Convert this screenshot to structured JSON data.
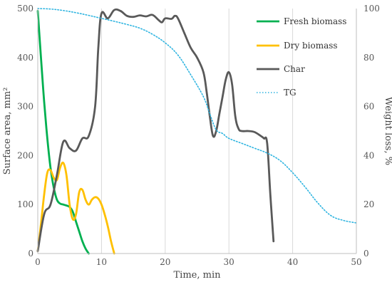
{
  "chart_data": {
    "type": "line",
    "xlabel": "Time, min",
    "ylabel_left": "Surface area, mm²",
    "ylabel_right": "Weight loss, %",
    "xlim": [
      0,
      50
    ],
    "ylim_left": [
      0,
      500
    ],
    "ylim_right": [
      0,
      100
    ],
    "x_ticks": [
      "0",
      "10",
      "20",
      "30",
      "40",
      "50"
    ],
    "y_left_ticks": [
      "0",
      "100",
      "200",
      "300",
      "400",
      "500"
    ],
    "y_right_ticks": [
      "0",
      "20",
      "40",
      "60",
      "80",
      "100"
    ],
    "grid": "vertical",
    "legend_position": "top-right",
    "series": [
      {
        "name": "Fresh biomass",
        "axis": "left",
        "color": "#00b050",
        "style": "solid",
        "x": [
          0,
          0.5,
          1,
          1.5,
          2,
          2.5,
          3,
          3.5,
          4,
          4.5,
          5,
          5.5,
          6,
          6.5,
          7,
          7.5,
          8
        ],
        "y": [
          495,
          400,
          310,
          235,
          175,
          135,
          110,
          102,
          100,
          98,
          95,
          85,
          65,
          45,
          25,
          10,
          0
        ]
      },
      {
        "name": "Dry biomass",
        "axis": "left",
        "color": "#ffc000",
        "style": "solid",
        "x": [
          0,
          0.5,
          1,
          1.5,
          2,
          2.5,
          3,
          3.5,
          4,
          4.5,
          5,
          5.5,
          6,
          6.5,
          7,
          7.5,
          8,
          8.5,
          9,
          9.5,
          10,
          10.5,
          11,
          11.5,
          12
        ],
        "y": [
          5,
          60,
          120,
          165,
          170,
          155,
          150,
          175,
          185,
          160,
          100,
          70,
          80,
          125,
          130,
          110,
          100,
          110,
          115,
          112,
          100,
          80,
          55,
          25,
          0
        ]
      },
      {
        "name": "Char",
        "axis": "left",
        "color": "#595959",
        "style": "solid",
        "x": [
          0,
          1,
          2,
          3,
          4,
          5,
          6,
          7,
          8,
          9,
          9.5,
          10,
          11,
          12,
          13,
          14,
          15,
          16,
          17,
          18,
          19,
          19.5,
          20,
          21,
          21.5,
          22,
          23,
          24,
          25,
          26,
          26.5,
          27,
          27.5,
          28,
          28.5,
          29,
          29.5,
          30,
          30.5,
          31,
          31.5,
          32,
          33,
          34,
          35,
          35.5,
          36,
          36.5,
          37
        ],
        "y": [
          5,
          80,
          100,
          160,
          228,
          215,
          210,
          235,
          240,
          300,
          420,
          490,
          480,
          497,
          495,
          485,
          483,
          486,
          484,
          487,
          476,
          472,
          480,
          479,
          485,
          480,
          450,
          420,
          400,
          370,
          330,
          280,
          240,
          250,
          285,
          320,
          355,
          370,
          345,
          280,
          255,
          250,
          250,
          248,
          240,
          235,
          225,
          120,
          25
        ]
      },
      {
        "name": "TG",
        "axis": "right",
        "color": "#2eb4e0",
        "style": "dotted",
        "x": [
          0,
          2,
          4,
          6,
          8,
          10,
          12,
          14,
          16,
          18,
          20,
          22,
          24,
          26,
          27,
          28,
          29,
          30,
          32,
          34,
          36,
          38,
          40,
          42,
          44,
          46,
          48,
          50
        ],
        "y": [
          100,
          99.8,
          99.2,
          98.3,
          97.2,
          96,
          94.8,
          93.5,
          92,
          89.5,
          86,
          81,
          73,
          64,
          57,
          50.5,
          49,
          47,
          45,
          43,
          41,
          38,
          33,
          27,
          20.5,
          15.5,
          13.5,
          12.5
        ]
      }
    ]
  }
}
